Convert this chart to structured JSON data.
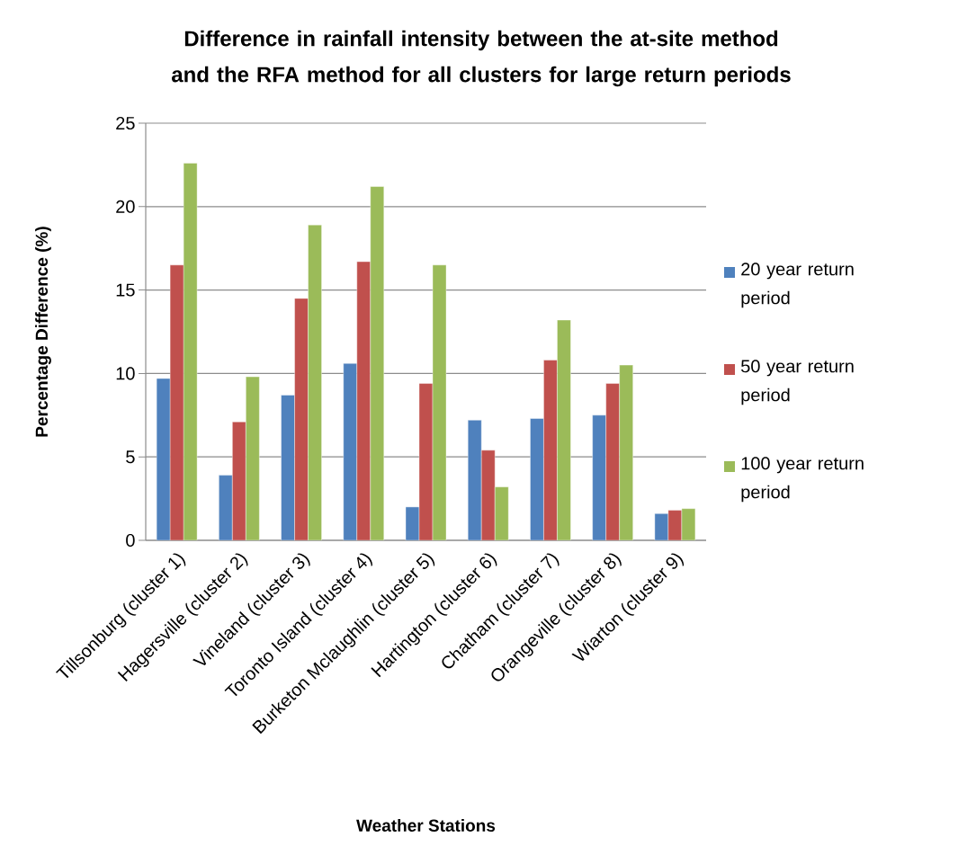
{
  "chart_data": {
    "type": "bar",
    "title": "Difference in rainfall intensity between the at-site method and the RFA method for all clusters for large return periods",
    "xlabel": "Weather Stations",
    "ylabel": "Percentage Difference (%)",
    "categories": [
      "Tillsonburg (cluster 1)",
      "Hagersville (cluster 2)",
      "Vineland (cluster 3)",
      "Toronto Island (cluster 4)",
      "Burketon Mclaughlin (cluster 5)",
      "Hartington (cluster 6)",
      "Chatham (cluster 7)",
      "Orangeville (cluster 8)",
      "Wiarton (cluster 9)"
    ],
    "series": [
      {
        "name": "20 year return period",
        "color": "#4f81bd",
        "values": [
          9.7,
          3.9,
          8.7,
          10.6,
          2.0,
          7.2,
          7.3,
          7.5,
          1.6
        ]
      },
      {
        "name": "50 year return period",
        "color": "#c0504d",
        "values": [
          16.5,
          7.1,
          14.5,
          16.7,
          9.4,
          5.4,
          10.8,
          9.4,
          1.8
        ]
      },
      {
        "name": "100 year return period",
        "color": "#9bbb59",
        "values": [
          22.6,
          9.8,
          18.9,
          21.2,
          16.5,
          3.2,
          13.2,
          10.5,
          1.9
        ]
      }
    ],
    "ylim": [
      0,
      25
    ],
    "yticks": [
      0,
      5,
      10,
      15,
      20,
      25
    ],
    "grid": "y",
    "legend": "right"
  }
}
